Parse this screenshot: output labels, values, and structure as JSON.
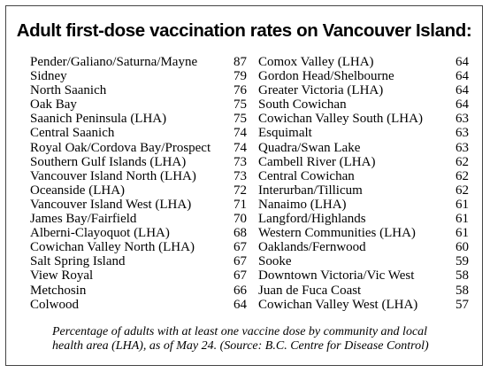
{
  "title": "Adult first-dose vaccination rates on Vancouver Island:",
  "left_column": [
    {
      "name": "Pender/Galiano/Saturna/Mayne",
      "value": "87"
    },
    {
      "name": "Sidney",
      "value": "79"
    },
    {
      "name": "North Saanich",
      "value": "76"
    },
    {
      "name": "Oak Bay",
      "value": "75"
    },
    {
      "name": "Saanich Peninsula (LHA)",
      "value": "75"
    },
    {
      "name": "Central Saanich",
      "value": "74"
    },
    {
      "name": "Royal Oak/Cordova Bay/Prospect",
      "value": "74"
    },
    {
      "name": "Southern Gulf Islands (LHA)",
      "value": "73"
    },
    {
      "name": "Vancouver Island North (LHA)",
      "value": "73"
    },
    {
      "name": "Oceanside (LHA)",
      "value": "72"
    },
    {
      "name": "Vancouver Island West (LHA)",
      "value": "71"
    },
    {
      "name": "James Bay/Fairfield",
      "value": "70"
    },
    {
      "name": "Alberni-Clayoquot (LHA)",
      "value": "68"
    },
    {
      "name": "Cowichan Valley North (LHA)",
      "value": "67"
    },
    {
      "name": "Salt Spring Island",
      "value": "67"
    },
    {
      "name": "View Royal",
      "value": "67"
    },
    {
      "name": "Metchosin",
      "value": "66"
    },
    {
      "name": "Colwood",
      "value": "64"
    }
  ],
  "right_column": [
    {
      "name": "Comox Valley (LHA)",
      "value": "64"
    },
    {
      "name": "Gordon Head/Shelbourne",
      "value": "64"
    },
    {
      "name": "Greater Victoria (LHA)",
      "value": "64"
    },
    {
      "name": "South Cowichan",
      "value": "64"
    },
    {
      "name": "Cowichan Valley South (LHA)",
      "value": "63"
    },
    {
      "name": "Esquimalt",
      "value": "63"
    },
    {
      "name": "Quadra/Swan Lake",
      "value": "63"
    },
    {
      "name": "Cambell River (LHA)",
      "value": "62"
    },
    {
      "name": "Central Cowichan",
      "value": "62"
    },
    {
      "name": "Interurban/Tillicum",
      "value": "62"
    },
    {
      "name": "Nanaimo (LHA)",
      "value": "61"
    },
    {
      "name": "Langford/Highlands",
      "value": "61"
    },
    {
      "name": "Western Communities (LHA)",
      "value": "61"
    },
    {
      "name": "Oaklands/Fernwood",
      "value": "60"
    },
    {
      "name": "Sooke",
      "value": "59"
    },
    {
      "name": "Downtown Victoria/Vic West",
      "value": "58"
    },
    {
      "name": "Juan de Fuca Coast",
      "value": "58"
    },
    {
      "name": "Cowichan Valley West (LHA)",
      "value": "57"
    }
  ],
  "caption": {
    "line1": "Percentage of adults with at least one vaccine dose by community and local",
    "line2": "health area (LHA), as of May 24. (Source: B.C. Centre for Disease Control)"
  }
}
